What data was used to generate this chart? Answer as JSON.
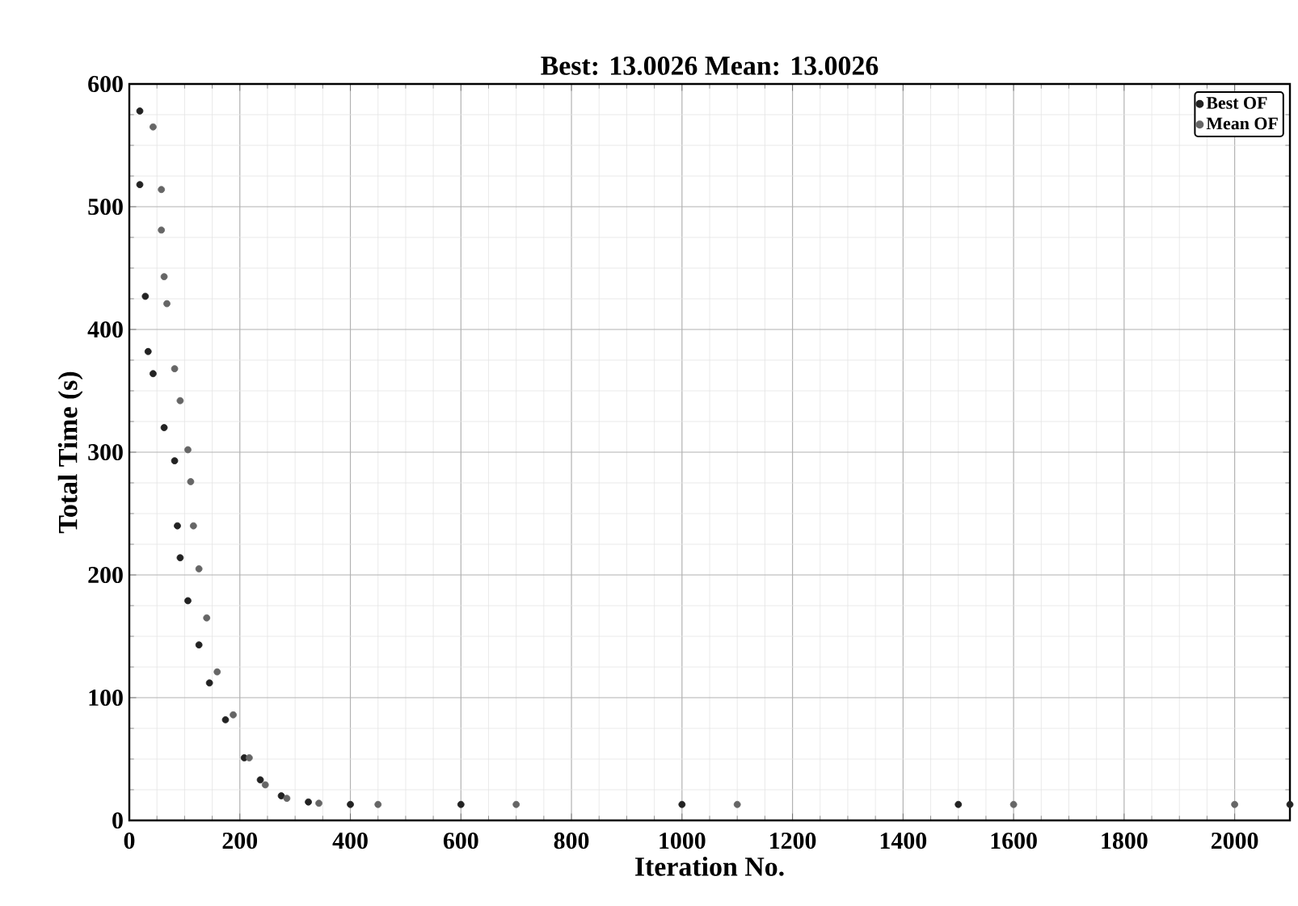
{
  "chart_data": {
    "type": "scatter",
    "title": "Best: 13.0026 Mean: 13.0026",
    "xlabel": "Iteration No.",
    "ylabel": "Total Time (s)",
    "series": [
      {
        "name": "Best OF",
        "color": "#222222",
        "x": [
          19,
          19,
          29,
          34,
          43,
          63,
          82,
          87,
          92,
          106,
          126,
          145,
          174,
          208,
          237,
          275,
          324,
          400,
          600,
          1000,
          1500,
          2100
        ],
        "values": [
          578,
          518,
          427,
          382,
          364,
          320,
          293,
          240,
          214,
          179,
          143,
          112,
          82,
          51,
          33,
          20,
          15,
          13,
          13,
          13,
          13,
          13
        ]
      },
      {
        "name": "Mean OF",
        "color": "#666666",
        "x": [
          43,
          58,
          58,
          63,
          68,
          82,
          92,
          106,
          111,
          116,
          126,
          140,
          159,
          188,
          217,
          246,
          285,
          343,
          450,
          700,
          1100,
          1600,
          2000
        ],
        "values": [
          565,
          514,
          481,
          443,
          421,
          368,
          342,
          302,
          276,
          240,
          205,
          165,
          121,
          86,
          51,
          29,
          18,
          14,
          13,
          13,
          13,
          13,
          13
        ]
      }
    ],
    "xlim": [
      0,
      2100
    ],
    "ylim": [
      0,
      600
    ],
    "xticks": [
      0,
      200,
      400,
      600,
      800,
      1000,
      1200,
      1400,
      1600,
      1800,
      2000
    ],
    "yticks": [
      0,
      100,
      200,
      300,
      400,
      500,
      600
    ],
    "grid": true,
    "legend": "top right"
  }
}
